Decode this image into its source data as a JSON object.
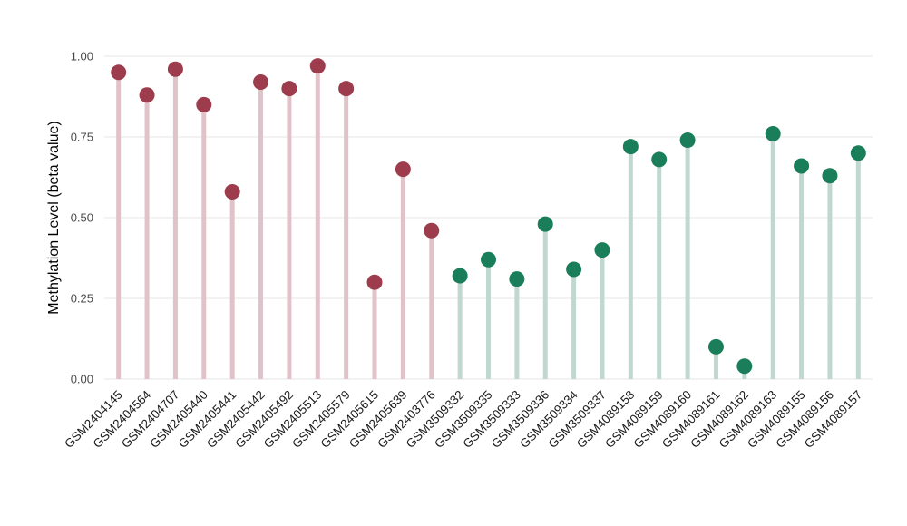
{
  "chart_data": {
    "type": "lollipop",
    "title": "",
    "xlabel": "",
    "ylabel": "Methylation Level (beta value)",
    "ylim": [
      0,
      1
    ],
    "grid": true,
    "legend": "none",
    "background": "#ffffff",
    "grid_color": "#e9e9e9",
    "yticks": [
      {
        "value": 0.0,
        "label": "0.00"
      },
      {
        "value": 0.25,
        "label": "0.25"
      },
      {
        "value": 0.5,
        "label": "0.50"
      },
      {
        "value": 0.75,
        "label": "0.75"
      },
      {
        "value": 1.0,
        "label": "1.00"
      }
    ],
    "categories": [
      "GSM2404145",
      "GSM2404564",
      "GSM2404707",
      "GSM2405440",
      "GSM2405441",
      "GSM2405442",
      "GSM2405492",
      "GSM2405513",
      "GSM2405579",
      "GSM2405615",
      "GSM2405639",
      "GSM2403776",
      "GSM3509332",
      "GSM3509335",
      "GSM3509333",
      "GSM3509336",
      "GSM3509334",
      "GSM3509337",
      "GSM4089158",
      "GSM4089159",
      "GSM4089160",
      "GSM4089161",
      "GSM4089162",
      "GSM4089163",
      "GSM4089155",
      "GSM4089156",
      "GSM4089157"
    ],
    "values": [
      0.95,
      0.88,
      0.96,
      0.85,
      0.58,
      0.92,
      0.9,
      0.97,
      0.9,
      0.3,
      0.65,
      0.46,
      0.32,
      0.37,
      0.31,
      0.48,
      0.34,
      0.4,
      0.72,
      0.68,
      0.74,
      0.1,
      0.04,
      0.76,
      0.66,
      0.63,
      0.7
    ],
    "point_groups": [
      0,
      0,
      0,
      0,
      0,
      0,
      0,
      0,
      0,
      0,
      0,
      0,
      1,
      1,
      1,
      1,
      1,
      1,
      1,
      1,
      1,
      1,
      1,
      1,
      1,
      1,
      1
    ],
    "groups": [
      {
        "name": "group-red",
        "dot_color": "#9d3c4c",
        "stem_color": "#e0c2c8"
      },
      {
        "name": "group-green",
        "dot_color": "#1b7e5b",
        "stem_color": "#c0d8d0"
      }
    ]
  }
}
